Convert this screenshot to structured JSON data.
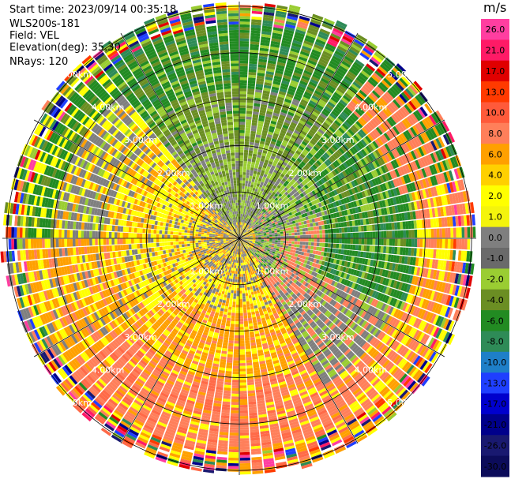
{
  "header": {
    "start_time": "Start time: 2023/09/14 00:35:18",
    "instrument": "WLS200s-181",
    "field": "Field: VEL",
    "elevation": "Elevation(deg): 35.30",
    "nrays": "NRays: 120"
  },
  "colorbar": {
    "unit": "m/s",
    "ticks": [
      "26.0",
      "21.0",
      "17.0",
      "13.0",
      "10.0",
      "8.0",
      "6.0",
      "4.0",
      "2.0",
      "1.0",
      "0.0",
      "-1.0",
      "-2.0",
      "-4.0",
      "-6.0",
      "-8.0",
      "-10.0",
      "-13.0",
      "-17.0",
      "-21.0",
      "-26.0",
      "-30.0"
    ],
    "colors": [
      "#ff3ea0",
      "#ff1a66",
      "#e00000",
      "#ff3a00",
      "#ff5a3a",
      "#ff7f5a",
      "#ffa000",
      "#ffd000",
      "#ffff00",
      "#f4f40c",
      "#7f7f7f",
      "#6a6a6a",
      "#9acd32",
      "#6b8e23",
      "#228b22",
      "#2e8b57",
      "#1e7fc8",
      "#1f3fff",
      "#0000cd",
      "#00008b",
      "#191970",
      "#0c0c5a"
    ]
  },
  "chart_data": {
    "type": "ppi_polar",
    "field": "VEL",
    "units": "m/s",
    "range_ring_labels": [
      "1.00km",
      "2.00km",
      "3.00km",
      "4.00km",
      "5.00km"
    ],
    "rings_km": [
      1,
      2,
      3,
      4,
      5
    ],
    "max_range_km": 5.1,
    "n_rays": 120,
    "colorbar_range": [
      -30,
      26
    ],
    "sectors": [
      {
        "from_az": 0,
        "to_az": 40,
        "dominant": "green (-4 to -8)"
      },
      {
        "from_az": 40,
        "to_az": 140,
        "dominant": "green/gray near, salmon/mixed far"
      },
      {
        "from_az": 140,
        "to_az": 230,
        "dominant": "salmon/orange (6 to 8)"
      },
      {
        "from_az": 230,
        "to_az": 320,
        "dominant": "yellow/orange (2 to 6)"
      },
      {
        "from_az": 320,
        "to_az": 360,
        "dominant": "green/olive (-2 to -6)"
      }
    ]
  }
}
